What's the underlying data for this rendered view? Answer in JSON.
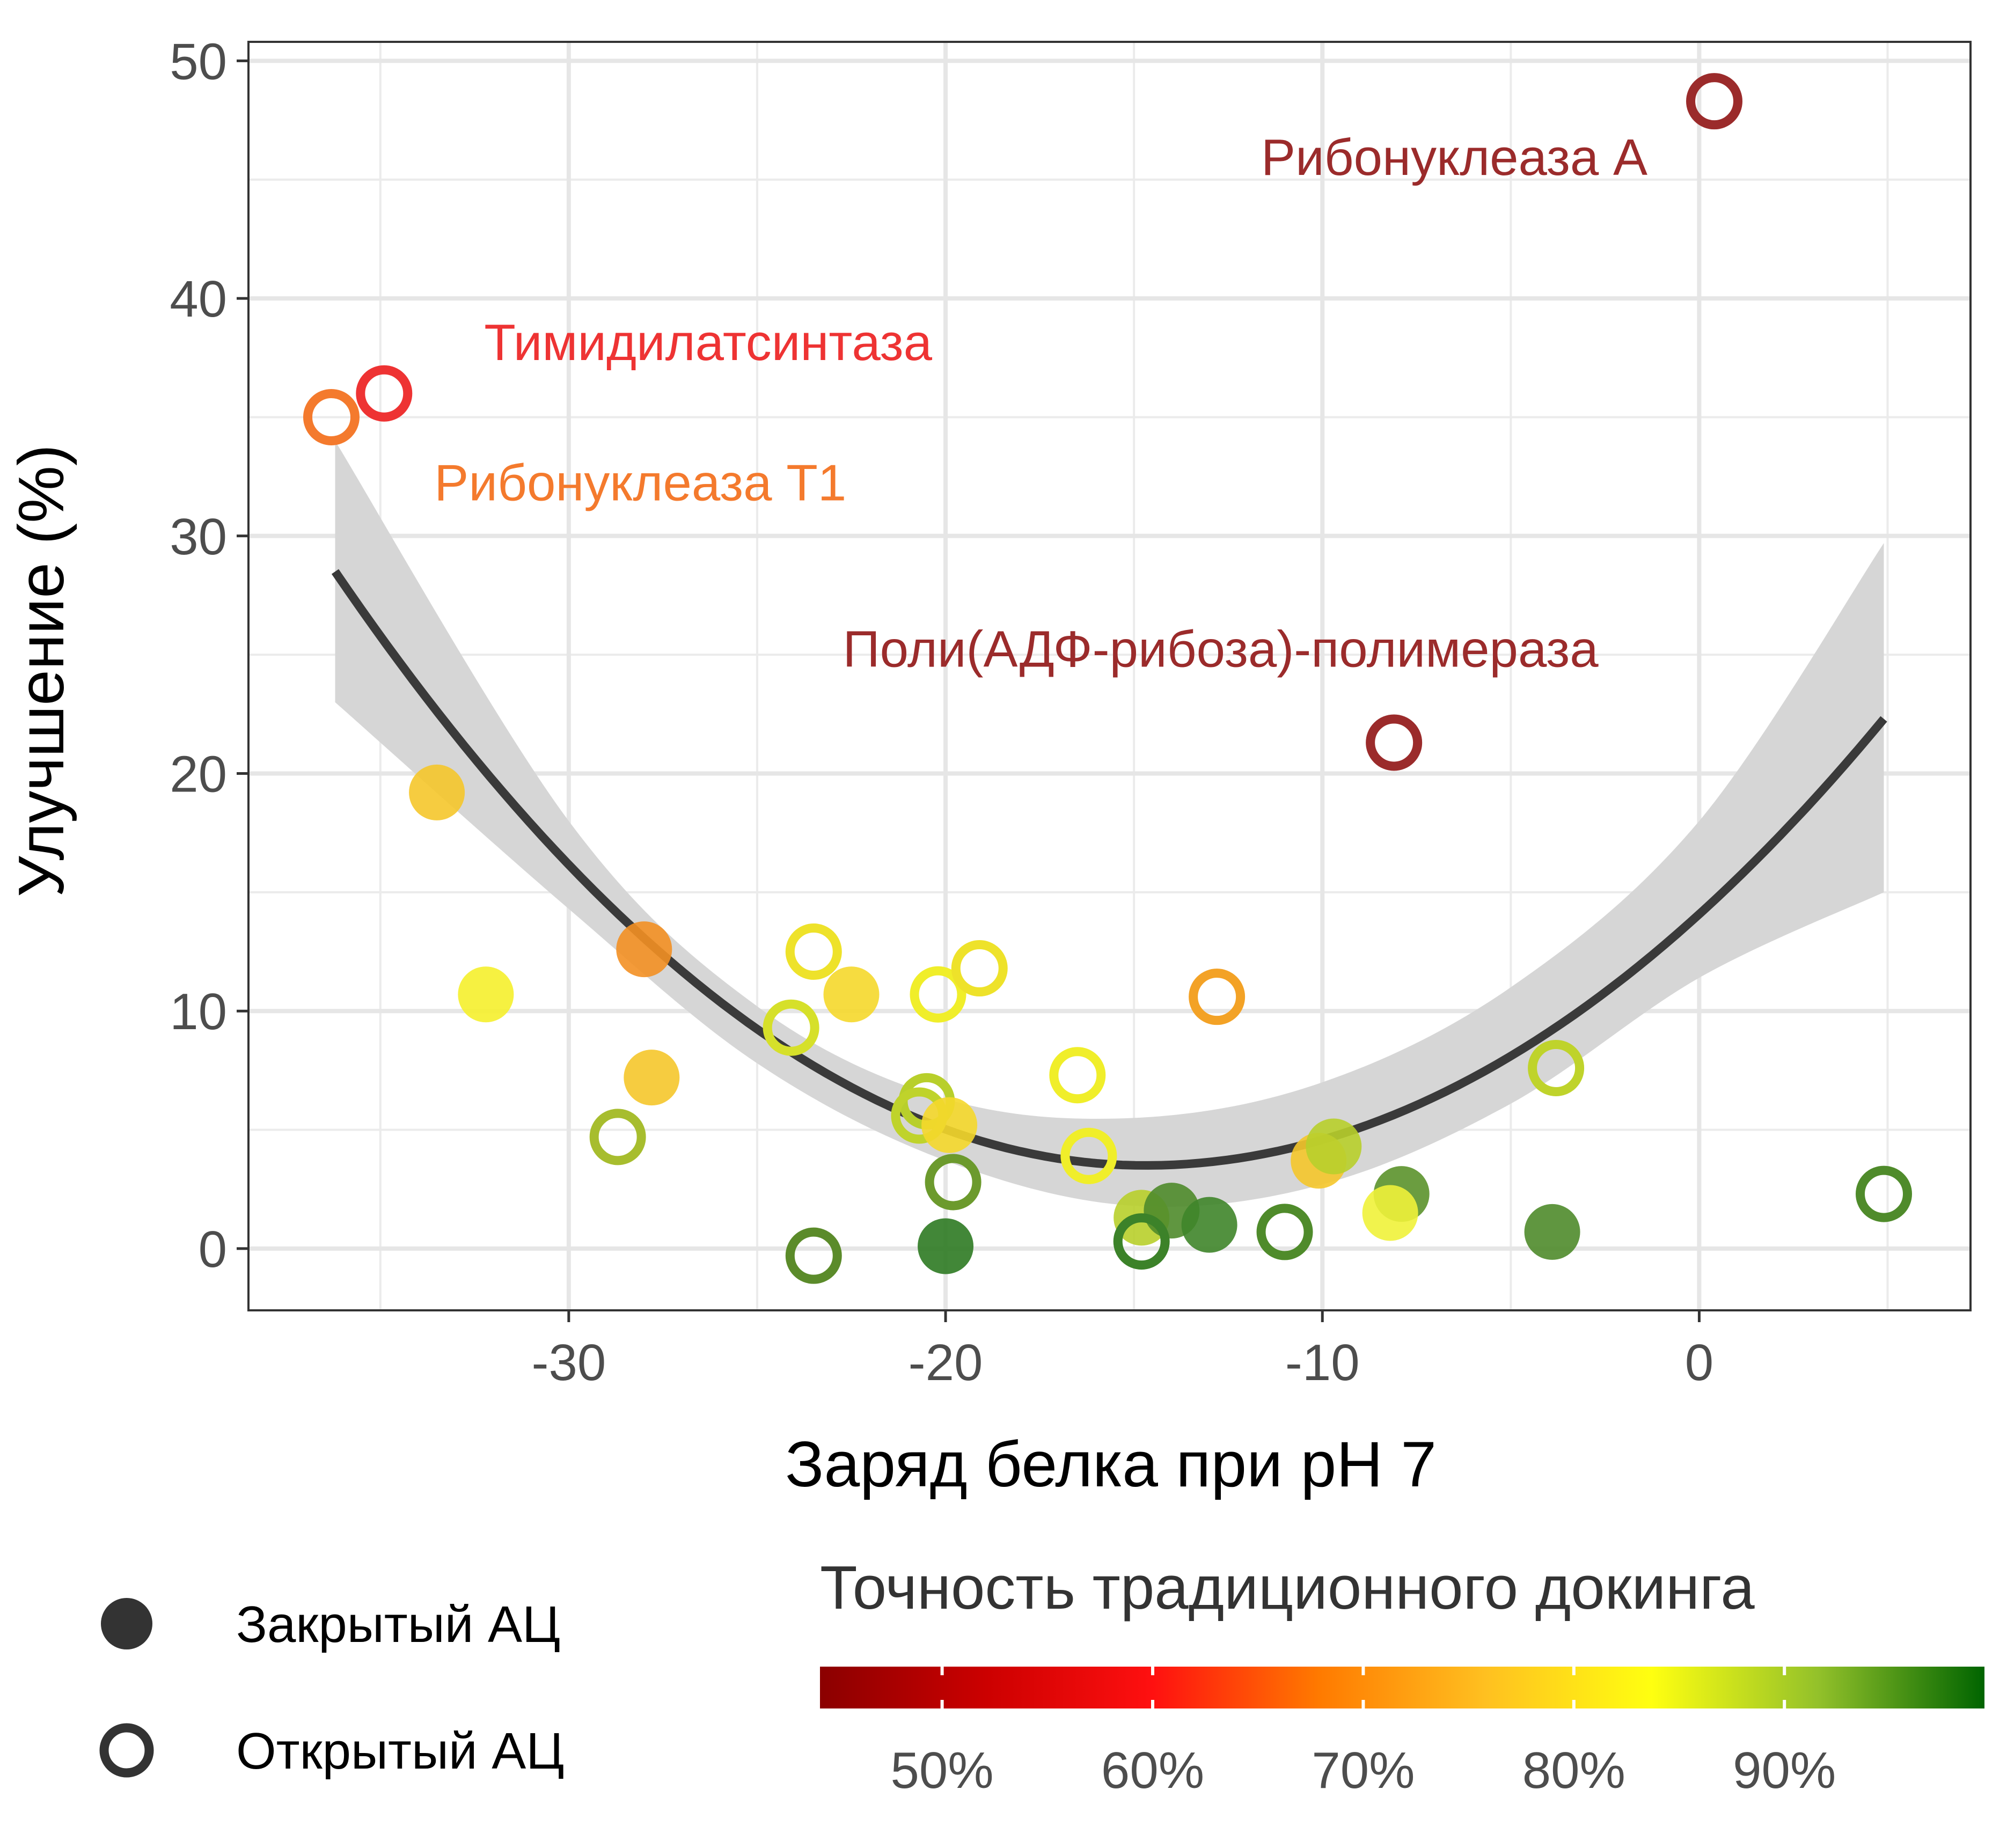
{
  "chart_data": {
    "type": "scatter",
    "xlabel": "Заряд белка при pH 7",
    "ylabel": "Улучшение (%)",
    "xlim": [
      -38.5,
      7.2
    ],
    "ylim": [
      -2.6,
      50.8
    ],
    "x_ticks": [
      -30,
      -20,
      -10,
      0
    ],
    "x_tick_labels": [
      "-30",
      "-20",
      "-10",
      "0"
    ],
    "y_ticks": [
      0,
      10,
      20,
      30,
      40,
      50
    ],
    "y_tick_labels": [
      "0",
      "10",
      "20",
      "30",
      "40",
      "50"
    ],
    "grid": true,
    "fit": {
      "type": "quadratic",
      "x_range": [
        -36.2,
        4.9
      ],
      "y_start": 28.5,
      "y_min": 3.5,
      "x_min": -14.7,
      "y_end": 22.3,
      "ci_band": [
        {
          "x": -36.2,
          "lo": 23.0,
          "hi": 34.0
        },
        {
          "x": -30,
          "lo": 14.3,
          "hi": 18.0
        },
        {
          "x": -25,
          "lo": 7.8,
          "hi": 10.2
        },
        {
          "x": -20,
          "lo": 3.7,
          "hi": 6.3
        },
        {
          "x": -15,
          "lo": 1.8,
          "hi": 5.5
        },
        {
          "x": -10,
          "lo": 2.7,
          "hi": 7.0
        },
        {
          "x": -5,
          "lo": 6.1,
          "hi": 11.0
        },
        {
          "x": 0,
          "lo": 11.4,
          "hi": 18.0
        },
        {
          "x": 4.9,
          "lo": 15.0,
          "hi": 29.7
        }
      ]
    },
    "points": [
      {
        "x": 0.4,
        "y": 48.3,
        "shape": "open",
        "color": "#9b2b2b"
      },
      {
        "x": -34.9,
        "y": 36.0,
        "shape": "open",
        "color": "#ee3333"
      },
      {
        "x": -36.3,
        "y": 35.0,
        "shape": "open",
        "color": "#f47a2d"
      },
      {
        "x": -8.1,
        "y": 21.3,
        "shape": "open",
        "color": "#9b2b2b"
      },
      {
        "x": -33.5,
        "y": 19.2,
        "shape": "filled",
        "color": "#f5c72b"
      },
      {
        "x": -28.0,
        "y": 12.6,
        "shape": "filled",
        "color": "#f39024"
      },
      {
        "x": -32.2,
        "y": 10.7,
        "shape": "filled",
        "color": "#f5f02c"
      },
      {
        "x": -27.8,
        "y": 7.2,
        "shape": "filled",
        "color": "#f5c72b"
      },
      {
        "x": -28.7,
        "y": 4.7,
        "shape": "open",
        "color": "#a7bd2e"
      },
      {
        "x": -23.5,
        "y": 12.5,
        "shape": "open",
        "color": "#eee22a"
      },
      {
        "x": -22.5,
        "y": 10.7,
        "shape": "filled",
        "color": "#f5d82b"
      },
      {
        "x": -24.1,
        "y": 9.3,
        "shape": "open",
        "color": "#d6e02a"
      },
      {
        "x": -20.2,
        "y": 10.7,
        "shape": "open",
        "color": "#f0ee2a"
      },
      {
        "x": -19.1,
        "y": 11.8,
        "shape": "open",
        "color": "#eee22a"
      },
      {
        "x": -20.5,
        "y": 6.2,
        "shape": "open",
        "color": "#b8cf2b"
      },
      {
        "x": -20.7,
        "y": 5.6,
        "shape": "open",
        "color": "#bfd32b"
      },
      {
        "x": -19.9,
        "y": 5.2,
        "shape": "filled",
        "color": "#f5d82b"
      },
      {
        "x": -19.8,
        "y": 2.8,
        "shape": "open",
        "color": "#6c9a2d"
      },
      {
        "x": -23.5,
        "y": -0.3,
        "shape": "open",
        "color": "#5b8b2a"
      },
      {
        "x": -20.0,
        "y": 0.1,
        "shape": "filled",
        "color": "#2d7a22"
      },
      {
        "x": -16.5,
        "y": 7.3,
        "shape": "open",
        "color": "#f0ee2a"
      },
      {
        "x": -16.2,
        "y": 3.9,
        "shape": "open",
        "color": "#f0ee2a"
      },
      {
        "x": -14.8,
        "y": 1.3,
        "shape": "filled",
        "color": "#b8cf2b"
      },
      {
        "x": -14.0,
        "y": 1.6,
        "shape": "filled",
        "color": "#4f8b2b"
      },
      {
        "x": -13.0,
        "y": 1.0,
        "shape": "filled",
        "color": "#3f852a"
      },
      {
        "x": -14.8,
        "y": 0.3,
        "shape": "open",
        "color": "#3c8229"
      },
      {
        "x": -12.8,
        "y": 10.6,
        "shape": "open",
        "color": "#f3a226"
      },
      {
        "x": -11.0,
        "y": 0.7,
        "shape": "open",
        "color": "#4f8b2b"
      },
      {
        "x": -10.1,
        "y": 3.7,
        "shape": "filled",
        "color": "#f5c72b"
      },
      {
        "x": -9.7,
        "y": 4.3,
        "shape": "filled",
        "color": "#b8cf2b"
      },
      {
        "x": -7.9,
        "y": 2.3,
        "shape": "filled",
        "color": "#5b922b"
      },
      {
        "x": -8.2,
        "y": 1.5,
        "shape": "filled",
        "color": "#f0f23a"
      },
      {
        "x": -3.8,
        "y": 7.6,
        "shape": "open",
        "color": "#bfd32b"
      },
      {
        "x": -3.9,
        "y": 0.7,
        "shape": "filled",
        "color": "#4f8b2b"
      },
      {
        "x": 4.9,
        "y": 2.3,
        "shape": "open",
        "color": "#4f8b2b"
      }
    ],
    "annotations": [
      {
        "text": "Рибонуклеаза А",
        "x": -6.5,
        "y": 45.2,
        "color": "#9b2b2b"
      },
      {
        "text": "Тимидилатсинтаза",
        "x": -26.3,
        "y": 37.4,
        "color": "#ee3333"
      },
      {
        "text": "Рибонуклеаза Т1",
        "x": -28.1,
        "y": 31.5,
        "color": "#f47a2d"
      },
      {
        "text": "Поли(АДФ-рибоза)-полимераза",
        "x": -12.7,
        "y": 24.5,
        "color": "#9b2b2b"
      }
    ],
    "legend_shape": {
      "position": "bottom-left",
      "items": [
        {
          "label": "Закрытый АЦ",
          "shape": "filled"
        },
        {
          "label": "Открытый АЦ",
          "shape": "open"
        }
      ]
    },
    "legend_color": {
      "position": "bottom-right",
      "title": "Точность традиционного докинга",
      "ticks": [
        "50%",
        "60%",
        "70%",
        "80%",
        "90%"
      ],
      "tick_values": [
        50,
        60,
        70,
        80,
        90
      ],
      "range": [
        44.2,
        99.5
      ],
      "gradient": [
        "#8b0000",
        "#cc0000",
        "#ff1010",
        "#ff7a00",
        "#ffc020",
        "#ffff10",
        "#93c12a",
        "#006400"
      ]
    }
  }
}
